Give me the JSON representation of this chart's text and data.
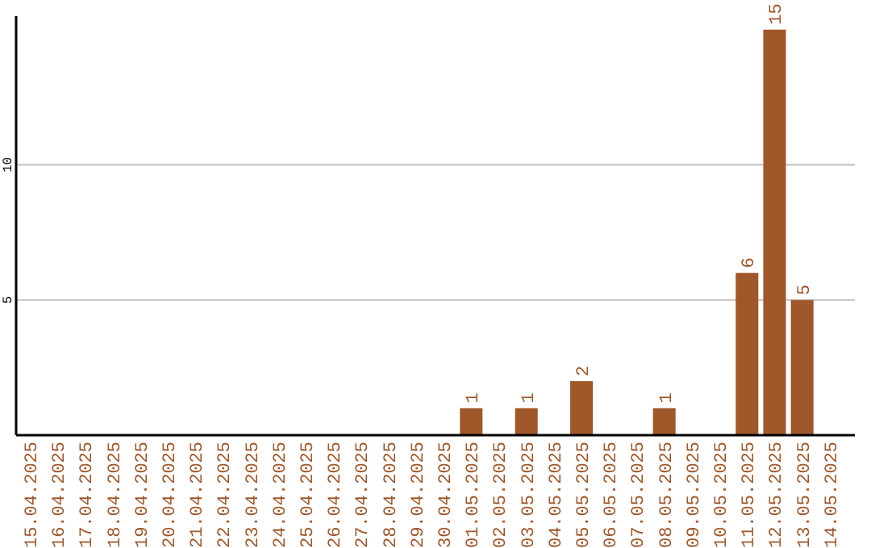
{
  "chart_data": {
    "type": "bar",
    "categories": [
      "15.04.2025",
      "16.04.2025",
      "17.04.2025",
      "18.04.2025",
      "19.04.2025",
      "20.04.2025",
      "21.04.2025",
      "22.04.2025",
      "23.04.2025",
      "24.04.2025",
      "25.04.2025",
      "26.04.2025",
      "27.04.2025",
      "28.04.2025",
      "29.04.2025",
      "30.04.2025",
      "01.05.2025",
      "02.05.2025",
      "03.05.2025",
      "04.05.2025",
      "05.05.2025",
      "06.05.2025",
      "07.05.2025",
      "08.05.2025",
      "09.05.2025",
      "10.05.2025",
      "11.05.2025",
      "12.05.2025",
      "13.05.2025",
      "14.05.2025"
    ],
    "values": [
      0,
      0,
      0,
      0,
      0,
      0,
      0,
      0,
      0,
      0,
      0,
      0,
      0,
      0,
      0,
      0,
      1,
      0,
      1,
      0,
      2,
      0,
      0,
      1,
      0,
      0,
      6,
      15,
      5,
      0
    ],
    "value_labels": [
      null,
      null,
      null,
      null,
      null,
      null,
      null,
      null,
      null,
      null,
      null,
      null,
      null,
      null,
      null,
      null,
      "1",
      null,
      "1",
      null,
      "2",
      null,
      null,
      "1",
      null,
      null,
      "6",
      "15",
      "5",
      null
    ],
    "color": "#a0572a",
    "ylim": [
      0,
      15.5
    ],
    "yticks": [
      5,
      10
    ],
    "grid": "y"
  }
}
